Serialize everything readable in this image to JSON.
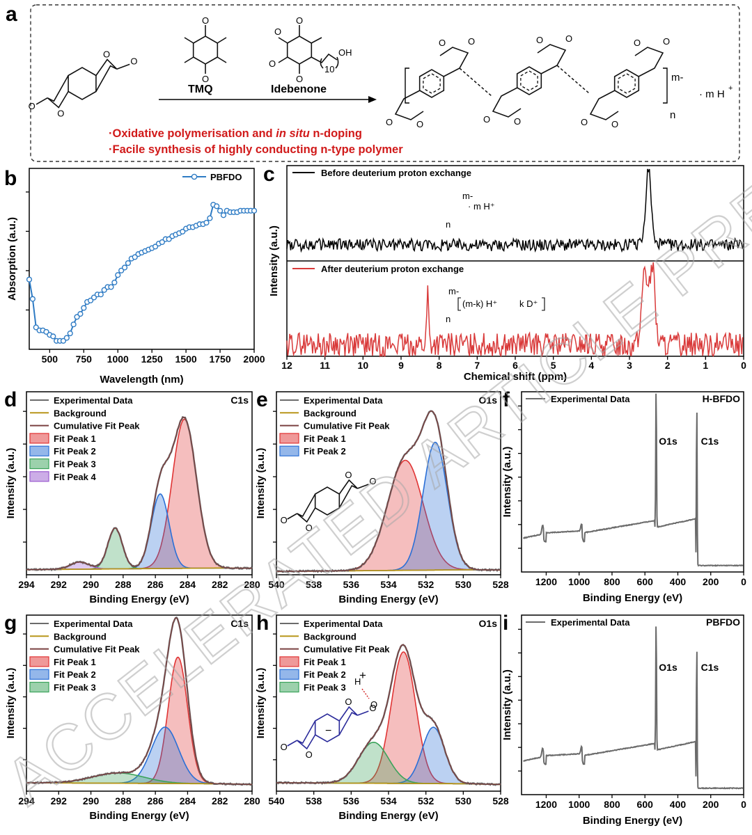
{
  "panel_labels": {
    "a": "a",
    "b": "b",
    "c": "c",
    "d": "d",
    "e": "e",
    "f": "f",
    "g": "g",
    "h": "h",
    "i": "i"
  },
  "scheme": {
    "reagent1": "TMQ",
    "reagent2": "Idebenone",
    "idebenone_sub": "10",
    "oh": "OH",
    "methoxy1": "O",
    "methoxy2": "O",
    "product_charge": "m-",
    "product_counter": "· m H",
    "product_counter_sup": "+",
    "product_n": "n",
    "bullet1_a": "·Oxidative polymerisation and ",
    "bullet1_b": "in situ",
    "bullet1_c": " n-doping",
    "bullet2": "·Facile synthesis of highly conducting n-type polymer"
  },
  "watermark": "ACCELERATED ARTICLE PREVIEW",
  "colors": {
    "abs_line": "#2e7bc4",
    "nmr_before": "#000000",
    "nmr_after": "#d93a3a",
    "exp_data": "#6b6b6b",
    "background": "#b8961a",
    "cumulative": "#7a4040",
    "fit1": "#e03434",
    "fit2": "#2a6fd6",
    "fit3": "#3aa35a",
    "fit4": "#9a5bd0",
    "scheme_red": "#d11a1a"
  },
  "chart_data": [
    {
      "id": "b",
      "type": "line",
      "title": "",
      "xlabel": "Wavelength (nm)",
      "ylabel": "Absorption (a.u.)",
      "xlim": [
        350,
        2000
      ],
      "ylim": [
        0,
        1
      ],
      "xticks": [
        500,
        750,
        1000,
        1250,
        1500,
        1750,
        2000
      ],
      "legend": [
        "PBFDO"
      ],
      "series": [
        {
          "name": "PBFDO",
          "x": [
            350,
            375,
            400,
            425,
            450,
            475,
            500,
            525,
            550,
            575,
            600,
            625,
            650,
            675,
            700,
            725,
            750,
            775,
            800,
            825,
            850,
            875,
            900,
            925,
            950,
            975,
            1000,
            1025,
            1050,
            1075,
            1100,
            1125,
            1150,
            1175,
            1200,
            1225,
            1250,
            1275,
            1300,
            1325,
            1350,
            1375,
            1400,
            1425,
            1450,
            1475,
            1500,
            1525,
            1550,
            1575,
            1600,
            1625,
            1650,
            1675,
            1700,
            1725,
            1750,
            1775,
            1800,
            1825,
            1850,
            1875,
            1900,
            1925,
            1950,
            1975,
            2000
          ],
          "values": [
            0.42,
            0.29,
            0.1,
            0.08,
            0.08,
            0.07,
            0.05,
            0.04,
            0.01,
            0.01,
            0.01,
            0.03,
            0.06,
            0.12,
            0.17,
            0.19,
            0.23,
            0.27,
            0.28,
            0.3,
            0.32,
            0.32,
            0.35,
            0.37,
            0.37,
            0.4,
            0.45,
            0.48,
            0.5,
            0.53,
            0.56,
            0.57,
            0.59,
            0.6,
            0.61,
            0.62,
            0.63,
            0.64,
            0.66,
            0.67,
            0.69,
            0.69,
            0.71,
            0.72,
            0.73,
            0.74,
            0.76,
            0.77,
            0.77,
            0.78,
            0.79,
            0.79,
            0.8,
            0.83,
            0.92,
            0.91,
            0.88,
            0.85,
            0.88,
            0.87,
            0.87,
            0.87,
            0.88,
            0.88,
            0.88,
            0.88,
            0.88
          ]
        }
      ]
    },
    {
      "id": "c",
      "type": "line",
      "title": "",
      "xlabel": "Chemical shift (ppm)",
      "ylabel": "Intensity (a.u.)",
      "xlim": [
        12,
        0
      ],
      "xticks": [
        12,
        11,
        10,
        9,
        8,
        7,
        6,
        5,
        4,
        3,
        2,
        1,
        0
      ],
      "series": [
        {
          "name": "Before deuterium proton exchange",
          "peaks": [
            {
              "center": 2.5,
              "height": 1.0
            }
          ],
          "noise": 0.08,
          "structure_charge": "m-",
          "structure_counter": "· m H⁺",
          "structure_n": "n"
        },
        {
          "name": "After deuterium proton exchange",
          "peaks": [
            {
              "center": 8.3,
              "height": 0.55
            },
            {
              "center": 2.6,
              "height": 0.8
            },
            {
              "center": 2.4,
              "height": 0.8
            }
          ],
          "noise": 0.12,
          "structure_charge": "m-",
          "counter_a": "(m-k) H⁺",
          "counter_b": "k D⁺",
          "structure_n": "n"
        }
      ]
    },
    {
      "id": "d",
      "type": "area",
      "title": "C1s",
      "xlabel": "Binding Energy (eV)",
      "ylabel": "Intensity (a.u.)",
      "xlim": [
        294,
        280
      ],
      "xticks": [
        294,
        292,
        290,
        288,
        286,
        284,
        282,
        280
      ],
      "legend": [
        "Experimental Data",
        "Background",
        "Cumulative Fit Peak",
        "Fit Peak 1",
        "Fit Peak 2",
        "Fit Peak 3",
        "Fit Peak 4"
      ],
      "peaks": [
        {
          "name": "Fit Peak 1",
          "center": 284.2,
          "height": 0.84,
          "width": 0.75
        },
        {
          "name": "Fit Peak 2",
          "center": 285.7,
          "height": 0.42,
          "width": 0.55
        },
        {
          "name": "Fit Peak 3",
          "center": 288.5,
          "height": 0.23,
          "width": 0.45
        },
        {
          "name": "Fit Peak 4",
          "center": 290.7,
          "height": 0.04,
          "width": 0.6
        }
      ],
      "background": [
        0.03,
        0.02
      ]
    },
    {
      "id": "e",
      "type": "area",
      "title": "O1s",
      "xlabel": "Binding Energy (eV)",
      "ylabel": "Intensity (a.u.)",
      "xlim": [
        540,
        528
      ],
      "xticks": [
        540,
        538,
        536,
        534,
        532,
        530,
        528
      ],
      "legend": [
        "Experimental Data",
        "Background",
        "Cumulative Fit Peak",
        "Fit Peak 1",
        "Fit Peak 2"
      ],
      "peaks": [
        {
          "name": "Fit Peak 1",
          "center": 533.1,
          "height": 0.62,
          "width": 0.95
        },
        {
          "name": "Fit Peak 2",
          "center": 531.5,
          "height": 0.72,
          "width": 0.65
        }
      ],
      "background": [
        0.02,
        0.01
      ]
    },
    {
      "id": "f",
      "type": "line",
      "title": "H-BFDO",
      "xlabel": "Binding Energy (eV)",
      "ylabel": "Intensity (a.u.)",
      "xlim": [
        1350,
        0
      ],
      "xticks": [
        1200,
        1000,
        800,
        600,
        400,
        200,
        0
      ],
      "legend": [
        "Experimental Data"
      ],
      "annotations": [
        "O1s",
        "C1s"
      ],
      "peaks": [
        {
          "label": "O1s",
          "center": 532,
          "height": 0.84
        },
        {
          "label": "C1s",
          "center": 285,
          "height": 0.96
        }
      ]
    },
    {
      "id": "g",
      "type": "area",
      "title": "C1s",
      "xlabel": "Binding Energy (eV)",
      "ylabel": "Intensity (a.u.)",
      "xlim": [
        294,
        280
      ],
      "xticks": [
        294,
        292,
        290,
        288,
        286,
        284,
        282,
        280
      ],
      "legend": [
        "Experimental Data",
        "Background",
        "Cumulative Fit Peak",
        "Fit Peak 1",
        "Fit Peak 2",
        "Fit Peak 3"
      ],
      "peaks": [
        {
          "name": "Fit Peak 1",
          "center": 284.6,
          "height": 0.74,
          "width": 0.6
        },
        {
          "name": "Fit Peak 2",
          "center": 285.4,
          "height": 0.33,
          "width": 0.85
        },
        {
          "name": "Fit Peak 3",
          "center": 288.3,
          "height": 0.06,
          "width": 1.6
        }
      ],
      "background": [
        0.05,
        0.02
      ]
    },
    {
      "id": "h",
      "type": "area",
      "title": "O1s",
      "xlabel": "Binding Energy (eV)",
      "ylabel": "Intensity (a.u.)",
      "xlim": [
        540,
        528
      ],
      "xticks": [
        540,
        538,
        536,
        534,
        532,
        530,
        528
      ],
      "legend": [
        "Experimental Data",
        "Background",
        "Cumulative Fit Peak",
        "Fit Peak 1",
        "Fit Peak 2",
        "Fit Peak 3"
      ],
      "peaks": [
        {
          "name": "Fit Peak 1",
          "center": 533.2,
          "height": 0.77,
          "width": 0.65
        },
        {
          "name": "Fit Peak 2",
          "center": 531.6,
          "height": 0.33,
          "width": 0.6
        },
        {
          "name": "Fit Peak 3",
          "center": 534.8,
          "height": 0.24,
          "width": 0.8
        }
      ],
      "background": [
        0.05,
        0.02
      ],
      "inset_labels": [
        "H",
        "O",
        "+",
        "−"
      ]
    },
    {
      "id": "i",
      "type": "line",
      "title": "PBFDO",
      "xlabel": "Binding Energy (eV)",
      "ylabel": "Intensity (a.u.)",
      "xlim": [
        1350,
        0
      ],
      "xticks": [
        1200,
        1000,
        800,
        600,
        400,
        200,
        0
      ],
      "legend": [
        "Experimental Data"
      ],
      "annotations": [
        "O1s",
        "C1s"
      ],
      "peaks": [
        {
          "label": "O1s",
          "center": 532,
          "height": 0.78
        },
        {
          "label": "C1s",
          "center": 285,
          "height": 0.86
        }
      ]
    }
  ]
}
